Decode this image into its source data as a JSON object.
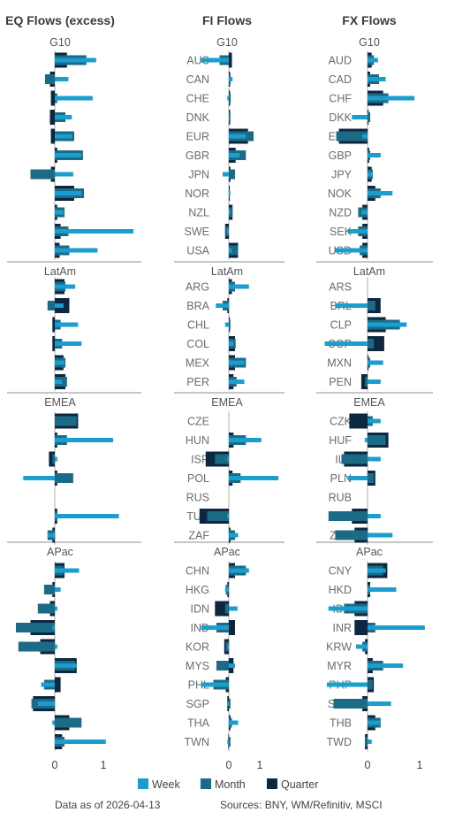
{
  "colors": {
    "week": "#1a9ecf",
    "month": "#1b6a86",
    "quarter": "#0e2740",
    "divider": "#8c8c8c",
    "text": "#444444"
  },
  "legend": {
    "week": "Week",
    "month": "Month",
    "quarter": "Quarter"
  },
  "footer": {
    "asof": "Data as of 2026-04-13",
    "sources": "Sources:  BNY, WM/Refinitiv, MSCI"
  },
  "chart_data": {
    "type": "bar",
    "orientation": "horizontal",
    "ticks": [
      "0",
      "1"
    ],
    "xlim": [
      -0.85,
      1.1
    ],
    "regions": [
      {
        "name": "G10",
        "rows": 11
      },
      {
        "name": "LatAm",
        "rows": 6
      },
      {
        "name": "EMEA",
        "rows": 7
      },
      {
        "name": "APac",
        "rows": 10
      }
    ],
    "panels": [
      {
        "title": "EQ Flows (excess)",
        "labels": [
          [],
          [],
          [],
          []
        ],
        "data": [
          [
            [
              0.85,
              0.65,
              0.25
            ],
            [
              0.28,
              -0.2,
              -0.1
            ],
            [
              0.78,
              0.05,
              -0.08
            ],
            [
              0.35,
              0.22,
              -0.1
            ],
            [
              0.35,
              0.4,
              -0.08
            ],
            [
              0.55,
              0.58,
              0.05
            ],
            [
              0.38,
              -0.5,
              -0.08
            ],
            [
              0.55,
              0.6,
              0.4
            ],
            [
              0.18,
              0.2,
              0.05
            ],
            [
              1.62,
              0.28,
              0.12
            ],
            [
              0.88,
              0.3,
              0.1
            ]
          ],
          [
            [
              0.42,
              0.22,
              0.2
            ],
            [
              0.18,
              -0.15,
              0.3
            ],
            [
              0.48,
              0.12,
              -0.05
            ],
            [
              0.55,
              0.15,
              -0.05
            ],
            [
              0.2,
              0.22,
              0.18
            ],
            [
              0.15,
              0.25,
              0.22
            ]
          ],
          [
            [
              null,
              0.45,
              0.48
            ],
            [
              1.2,
              0.25,
              0.05
            ],
            [
              0.05,
              -0.05,
              -0.12
            ],
            [
              -0.65,
              0.38,
              0.05
            ],
            [
              null,
              null,
              null
            ],
            [
              1.32,
              0.05,
              0.05
            ],
            [
              -0.15,
              -0.15,
              -0.05
            ]
          ],
          [
            [
              0.5,
              0.18,
              0.2
            ],
            [
              0.12,
              -0.22,
              -0.05
            ],
            [
              0.05,
              -0.35,
              -0.1
            ],
            [
              -0.05,
              -0.8,
              -0.5
            ],
            [
              0.05,
              -0.75,
              -0.3
            ],
            [
              0.45,
              0.42,
              0.45
            ],
            [
              -0.28,
              -0.22,
              0.12
            ],
            [
              -0.35,
              -0.48,
              -0.45
            ],
            [
              -0.05,
              0.55,
              0.3
            ],
            [
              1.05,
              0.2,
              0.15
            ]
          ]
        ]
      },
      {
        "title": "FI Flows",
        "labels": [
          [
            "AUS",
            "CAN",
            "CHE",
            "DNK",
            "EUR",
            "GBR",
            "JPN",
            "NOR",
            "NZL",
            "SWE",
            "USA"
          ],
          [
            "ARG",
            "BRA",
            "CHL",
            "COL",
            "MEX",
            "PER"
          ],
          [
            "CZE",
            "HUN",
            "ISR",
            "POL",
            "RUS",
            "TUR",
            "ZAF"
          ],
          [
            "CHN",
            "HKG",
            "IDN",
            "IND",
            "KOR",
            "MYS",
            "PHL",
            "SGP",
            "THA",
            "TWN"
          ]
        ],
        "data": [
          [
            [
              -0.9,
              -0.3,
              0.1
            ],
            [
              0.12,
              0.06,
              0.04
            ],
            [
              -0.05,
              0.06,
              0.04
            ],
            [
              0.02,
              0.05,
              0.04
            ],
            [
              0.55,
              0.8,
              0.62
            ],
            [
              0.35,
              0.55,
              0.22
            ],
            [
              -0.2,
              0.2,
              0.05
            ],
            [
              0.05,
              0.02,
              0.03
            ],
            [
              0.05,
              0.12,
              0.12
            ],
            [
              -0.05,
              -0.12,
              -0.12
            ],
            [
              0.1,
              0.3,
              0.3
            ]
          ],
          [
            [
              0.65,
              0.2,
              0.1
            ],
            [
              -0.42,
              -0.2,
              -0.05
            ],
            [
              -0.12,
              0.05,
              0.03
            ],
            [
              0.15,
              0.22,
              0.2
            ],
            [
              0.5,
              0.55,
              0.2
            ],
            [
              0.5,
              0.25,
              0.15
            ]
          ],
          [
            [
              null,
              null,
              null
            ],
            [
              1.05,
              0.55,
              0.15
            ],
            [
              -0.05,
              -0.45,
              -0.75
            ],
            [
              1.6,
              0.38,
              0.12
            ],
            [
              null,
              null,
              null
            ],
            [
              -0.05,
              -0.7,
              -0.95
            ],
            [
              0.3,
              0.2,
              0.05
            ]
          ],
          [
            [
              0.65,
              0.55,
              0.2
            ],
            [
              -0.12,
              -0.1,
              -0.05
            ],
            [
              0.28,
              -0.12,
              -0.45
            ],
            [
              -0.9,
              -0.4,
              0.2
            ],
            [
              -0.05,
              -0.1,
              -0.15
            ],
            [
              0.2,
              -0.4,
              0.15
            ],
            [
              -0.9,
              -0.5,
              -0.1
            ],
            [
              -0.05,
              0.05,
              -0.05
            ],
            [
              0.3,
              0.1,
              0.05
            ],
            [
              -0.05,
              0.05,
              -0.02
            ]
          ]
        ]
      },
      {
        "title": "FX Flows",
        "labels": [
          [
            "AUD",
            "CAD",
            "CHF",
            "DKK",
            "EUR",
            "GBP",
            "JPY",
            "NOK",
            "NZD",
            "SEK",
            "USD"
          ],
          [
            "ARS",
            "BRL",
            "CLP",
            "COP",
            "MXN",
            "PEN"
          ],
          [
            "CZK",
            "HUF",
            "ILS",
            "PLN",
            "RUB",
            "TRY",
            "ZAR"
          ],
          [
            "CNY",
            "HKD",
            "IDR",
            "INR",
            "KRW",
            "MYR",
            "PHP",
            "SGD",
            "THB",
            "TWD"
          ]
        ],
        "data": [
          [
            [
              0.2,
              0.12,
              0.08
            ],
            [
              0.35,
              0.22,
              0.05
            ],
            [
              0.9,
              0.4,
              0.3
            ],
            [
              -0.3,
              0.05,
              0.02
            ],
            [
              -0.1,
              -0.6,
              -0.55
            ],
            [
              0.25,
              0.05,
              0.03
            ],
            [
              0.1,
              0.1,
              0.08
            ],
            [
              0.48,
              0.25,
              0.15
            ],
            [
              -0.12,
              -0.18,
              -0.1
            ],
            [
              -0.38,
              -0.18,
              -0.1
            ],
            [
              -0.62,
              -0.15,
              -0.1
            ]
          ],
          [
            [
              null,
              null,
              null
            ],
            [
              -0.62,
              0.15,
              0.25
            ],
            [
              0.75,
              0.62,
              0.35
            ],
            [
              -0.82,
              0.12,
              0.32
            ],
            [
              0.3,
              0.05,
              0.02
            ],
            [
              0.25,
              -0.05,
              -0.12
            ]
          ],
          [
            [
              0.25,
              0.1,
              -0.35
            ],
            [
              -0.05,
              0.35,
              0.4
            ],
            [
              0.25,
              -0.5,
              -0.45
            ],
            [
              -0.38,
              0.12,
              0.15
            ],
            [
              null,
              null,
              null
            ],
            [
              0.25,
              -0.75,
              -0.3
            ],
            [
              0.48,
              -0.62,
              -0.25
            ]
          ],
          [
            [
              0.35,
              0.3,
              0.38
            ],
            [
              0.55,
              0.05,
              0.05
            ],
            [
              -0.75,
              -0.45,
              -0.25
            ],
            [
              1.1,
              0.15,
              -0.25
            ],
            [
              -0.22,
              -0.1,
              -0.05
            ],
            [
              0.68,
              0.3,
              0.1
            ],
            [
              -0.78,
              0.1,
              0.12
            ],
            [
              0.45,
              -0.65,
              -0.1
            ],
            [
              0.25,
              0.25,
              0.15
            ],
            [
              0.08,
              -0.05,
              -0.05
            ]
          ]
        ]
      }
    ]
  }
}
